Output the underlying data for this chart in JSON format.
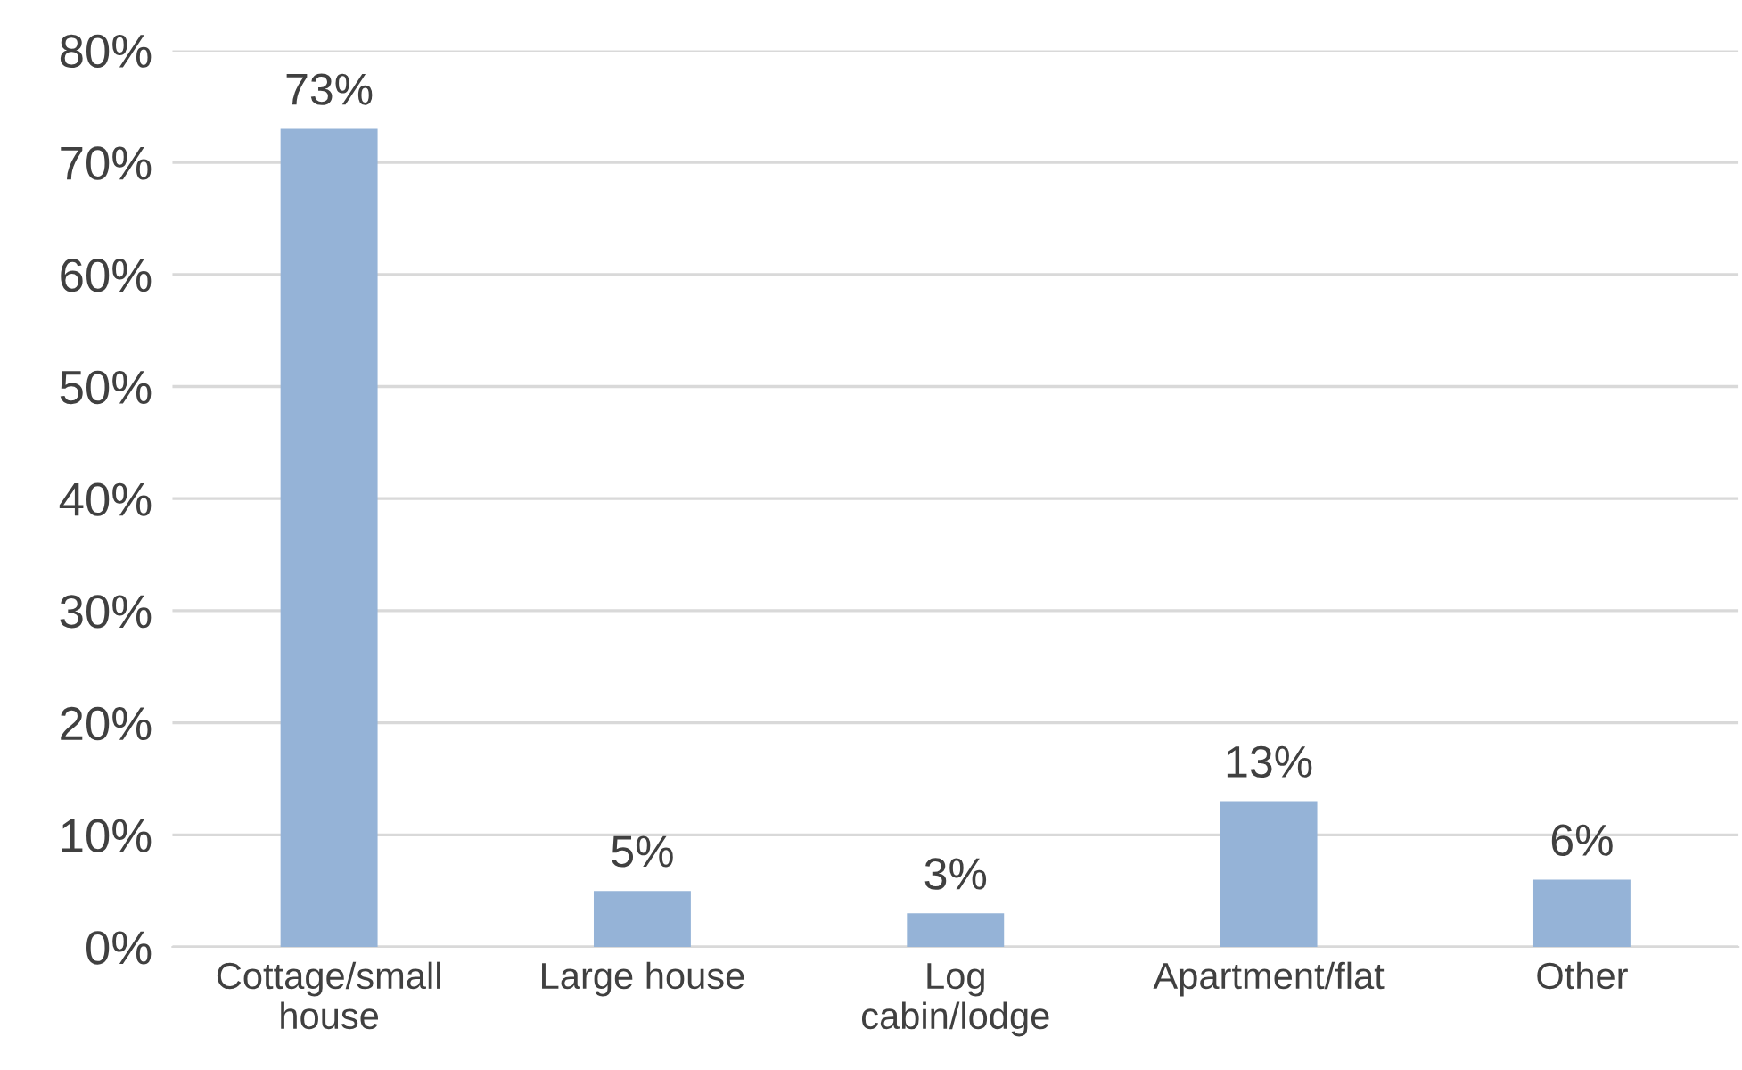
{
  "chart_data": {
    "type": "bar",
    "categories": [
      "Cottage/small\nhouse",
      "Large house",
      "Log\ncabin/lodge",
      "Apartment/flat",
      "Other"
    ],
    "values": [
      73,
      5,
      3,
      13,
      6
    ],
    "color": "#95b3d7",
    "ylim": [
      0,
      80
    ],
    "yticks": [
      {
        "value": 0,
        "label": "0%"
      },
      {
        "value": 10,
        "label": "10%"
      },
      {
        "value": 20,
        "label": "20%"
      },
      {
        "value": 30,
        "label": "30%"
      },
      {
        "value": 40,
        "label": "40%"
      },
      {
        "value": 50,
        "label": "50%"
      },
      {
        "value": 60,
        "label": "60%"
      },
      {
        "value": 70,
        "label": "70%"
      },
      {
        "value": 80,
        "label": "80%"
      }
    ],
    "value_labels": [
      "73%",
      "5%",
      "3%",
      "13%",
      "6%"
    ],
    "grid": "y",
    "legend": false
  }
}
